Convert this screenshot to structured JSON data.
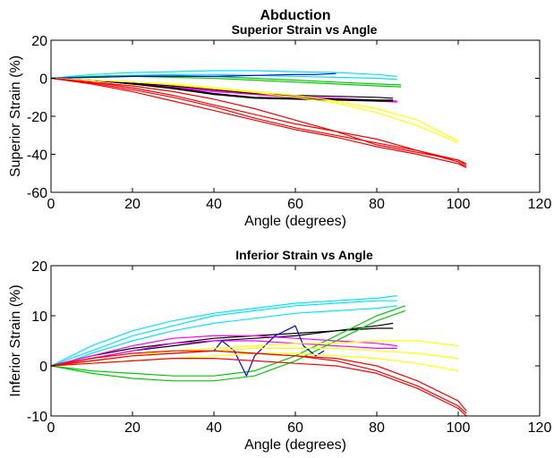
{
  "figure_title": "Abduction",
  "chart_data": [
    {
      "type": "line",
      "title": "Superior Strain vs Angle",
      "xlabel": "Angle (degrees)",
      "ylabel": "Superior Strain (%)",
      "xlim": [
        0,
        120
      ],
      "ylim": [
        -60,
        20
      ],
      "xticks": [
        0,
        20,
        40,
        60,
        80,
        100,
        120
      ],
      "yticks": [
        20,
        0,
        -20,
        -40,
        -60
      ],
      "grid": false,
      "series": [
        {
          "color": "#00e5ff",
          "x": [
            0,
            10,
            20,
            30,
            40,
            50,
            60,
            70,
            80,
            85
          ],
          "y": [
            0,
            2,
            3,
            3.5,
            4,
            4,
            3.5,
            3,
            2,
            1
          ]
        },
        {
          "color": "#00e5ff",
          "x": [
            0,
            10,
            20,
            30,
            40,
            50,
            60,
            70,
            80,
            85
          ],
          "y": [
            0,
            1,
            1.5,
            2,
            2,
            1.5,
            1,
            0.5,
            0,
            -0.5
          ]
        },
        {
          "color": "#00cc00",
          "x": [
            0,
            10,
            20,
            30,
            40,
            50,
            60,
            70,
            80,
            86
          ],
          "y": [
            0,
            0.5,
            1,
            0.5,
            0,
            -1,
            -2,
            -3,
            -4,
            -4.5
          ]
        },
        {
          "color": "#00cc00",
          "x": [
            0,
            10,
            20,
            30,
            40,
            50,
            60,
            70,
            80,
            86
          ],
          "y": [
            0,
            1,
            1.5,
            1.5,
            1,
            0,
            -1,
            -2,
            -3,
            -3.5
          ]
        },
        {
          "color": "#0000ff",
          "x": [
            0,
            10,
            20,
            30,
            40,
            50,
            60,
            65,
            70
          ],
          "y": [
            0,
            0.5,
            1,
            1,
            1,
            1.5,
            2,
            2,
            2.5
          ]
        },
        {
          "color": "#ff00ff",
          "x": [
            0,
            10,
            20,
            30,
            40,
            50,
            60,
            70,
            80,
            85
          ],
          "y": [
            0,
            -1,
            -3,
            -5,
            -7,
            -8.5,
            -10,
            -11,
            -12,
            -12.5
          ]
        },
        {
          "color": "#ff00ff",
          "x": [
            0,
            10,
            20,
            30,
            40,
            50,
            60,
            70,
            80,
            85
          ],
          "y": [
            0,
            -1,
            -2.5,
            -4.5,
            -6.5,
            -8,
            -9.5,
            -10.5,
            -11.5,
            -12
          ]
        },
        {
          "color": "#000000",
          "x": [
            0,
            10,
            20,
            30,
            40,
            50,
            60,
            70,
            80,
            84
          ],
          "y": [
            0,
            -1,
            -3,
            -5,
            -8,
            -10,
            -10.5,
            -11,
            -11.5,
            -11.5
          ]
        },
        {
          "color": "#000000",
          "x": [
            0,
            10,
            20,
            30,
            40,
            50,
            60,
            70,
            80,
            84
          ],
          "y": [
            0,
            -1,
            -3,
            -5.5,
            -8.5,
            -10.5,
            -11,
            -11.5,
            -12,
            -12
          ]
        },
        {
          "color": "#000000",
          "x": [
            0,
            10,
            20,
            30,
            40,
            50,
            60,
            70,
            80,
            84
          ],
          "y": [
            0,
            -1,
            -2.5,
            -4,
            -6,
            -8,
            -9,
            -9.5,
            -10,
            -10.5
          ]
        },
        {
          "color": "#ffff00",
          "x": [
            0,
            10,
            20,
            30,
            40,
            50,
            60,
            70,
            80,
            90,
            100
          ],
          "y": [
            0,
            -1,
            -2,
            -3,
            -5,
            -7,
            -9,
            -12,
            -16,
            -22,
            -33
          ]
        },
        {
          "color": "#ffff00",
          "x": [
            0,
            10,
            20,
            30,
            40,
            50,
            60,
            70,
            80,
            90,
            100
          ],
          "y": [
            0,
            -1,
            -2,
            -3.5,
            -5.5,
            -7.5,
            -10,
            -13,
            -18,
            -25,
            -34
          ]
        },
        {
          "color": "#ff0000",
          "x": [
            0,
            10,
            20,
            30,
            40,
            50,
            60,
            70,
            80,
            90,
            100,
            102
          ],
          "y": [
            0,
            -3,
            -7,
            -12,
            -17,
            -22,
            -27,
            -31,
            -36,
            -40,
            -45,
            -47
          ]
        },
        {
          "color": "#ff0000",
          "x": [
            0,
            10,
            20,
            30,
            40,
            50,
            60,
            70,
            80,
            90,
            100,
            102
          ],
          "y": [
            0,
            -2,
            -5,
            -9,
            -14,
            -19,
            -24,
            -28,
            -32,
            -38,
            -44,
            -47
          ]
        },
        {
          "color": "#ff0000",
          "x": [
            0,
            10,
            20,
            30,
            40,
            50,
            60,
            70,
            80,
            90,
            100,
            102
          ],
          "y": [
            0,
            -2,
            -4,
            -7,
            -11,
            -16,
            -22,
            -28,
            -35,
            -39,
            -43,
            -45
          ]
        },
        {
          "color": "#ff0000",
          "x": [
            0,
            10,
            20,
            30,
            40,
            50,
            60,
            70,
            80,
            90,
            100,
            102
          ],
          "y": [
            0,
            -2.5,
            -6,
            -10,
            -15,
            -21,
            -26,
            -30,
            -34,
            -38,
            -43,
            -46
          ]
        }
      ]
    },
    {
      "type": "line",
      "title": "Inferior Strain vs Angle",
      "xlabel": "Angle (degrees)",
      "ylabel": "Inferior Strain (%)",
      "xlim": [
        0,
        120
      ],
      "ylim": [
        -10,
        20
      ],
      "xticks": [
        0,
        20,
        40,
        60,
        80,
        100,
        120
      ],
      "yticks": [
        20,
        10,
        0,
        -10
      ],
      "grid": false,
      "series": [
        {
          "color": "#00e5ff",
          "x": [
            0,
            5,
            10,
            20,
            30,
            40,
            50,
            60,
            70,
            80,
            85
          ],
          "y": [
            0,
            2,
            4,
            7,
            9,
            10.5,
            11.5,
            12.5,
            13,
            13.5,
            14
          ]
        },
        {
          "color": "#00e5ff",
          "x": [
            0,
            5,
            10,
            20,
            30,
            40,
            50,
            60,
            70,
            80,
            85
          ],
          "y": [
            0,
            1.5,
            3,
            6,
            8,
            10,
            11,
            12,
            12.5,
            13,
            13
          ]
        },
        {
          "color": "#00e5ff",
          "x": [
            0,
            5,
            10,
            20,
            30,
            40,
            50,
            60,
            70,
            80,
            85
          ],
          "y": [
            0,
            1,
            2.5,
            5,
            7,
            8.5,
            9.5,
            10.5,
            11,
            11.5,
            12
          ]
        },
        {
          "color": "#000000",
          "x": [
            0,
            10,
            20,
            30,
            40,
            50,
            60,
            70,
            80,
            84
          ],
          "y": [
            0,
            2,
            3.5,
            4.5,
            5.5,
            6,
            6.5,
            7,
            7.5,
            7.5
          ]
        },
        {
          "color": "#000000",
          "x": [
            0,
            10,
            20,
            30,
            40,
            50,
            60,
            70,
            80,
            84
          ],
          "y": [
            0,
            1.5,
            3,
            4,
            5,
            5.5,
            6,
            7,
            8,
            8.5
          ]
        },
        {
          "color": "#ff00ff",
          "x": [
            0,
            10,
            20,
            30,
            40,
            50,
            60,
            70,
            80,
            85
          ],
          "y": [
            0,
            2,
            4,
            5.5,
            6,
            6,
            5.5,
            5,
            4.5,
            4
          ]
        },
        {
          "color": "#ff00ff",
          "x": [
            0,
            10,
            20,
            30,
            40,
            50,
            60,
            70,
            80,
            85
          ],
          "y": [
            0,
            1.5,
            3,
            4.5,
            5,
            5,
            4.5,
            4,
            3.5,
            3.5
          ]
        },
        {
          "color": "#00cc00",
          "x": [
            0,
            10,
            20,
            30,
            40,
            50,
            60,
            70,
            80,
            87
          ],
          "y": [
            0,
            -1,
            -1.5,
            -2,
            -2,
            -1,
            2,
            6,
            10,
            12
          ]
        },
        {
          "color": "#00cc00",
          "x": [
            0,
            10,
            20,
            30,
            40,
            50,
            60,
            70,
            80,
            87
          ],
          "y": [
            0,
            -1.5,
            -2.5,
            -3,
            -3,
            -2,
            1,
            5,
            9,
            11
          ]
        },
        {
          "color": "#0000ff",
          "x": [
            0,
            10,
            20,
            30,
            40,
            42,
            45,
            48,
            50,
            55,
            60,
            62,
            65,
            67
          ],
          "y": [
            0,
            1,
            2,
            2.5,
            3,
            5,
            3,
            -2,
            2,
            6,
            8,
            4,
            2,
            3
          ]
        },
        {
          "color": "#ffff00",
          "x": [
            0,
            10,
            20,
            30,
            40,
            50,
            60,
            70,
            80,
            90,
            100
          ],
          "y": [
            0,
            1,
            2,
            3,
            3.5,
            4,
            4.5,
            4.5,
            5,
            5,
            4
          ]
        },
        {
          "color": "#ffff00",
          "x": [
            0,
            10,
            20,
            30,
            40,
            50,
            60,
            70,
            80,
            90,
            100
          ],
          "y": [
            0,
            0.5,
            1,
            1.5,
            2,
            2.5,
            2.5,
            2,
            1.5,
            0.5,
            -1
          ]
        },
        {
          "color": "#ffff00",
          "x": [
            0,
            10,
            20,
            30,
            40,
            50,
            60,
            70,
            80,
            90,
            100
          ],
          "y": [
            0,
            1,
            2,
            2.5,
            3,
            3.5,
            3.5,
            3.5,
            3,
            2.5,
            1.5
          ]
        },
        {
          "color": "#ff0000",
          "x": [
            0,
            10,
            20,
            30,
            40,
            50,
            60,
            70,
            80,
            90,
            100,
            102
          ],
          "y": [
            0,
            1,
            2,
            2.5,
            3,
            2.5,
            2,
            1,
            -1,
            -4,
            -8,
            -9.5
          ]
        },
        {
          "color": "#ff0000",
          "x": [
            0,
            10,
            20,
            30,
            40,
            50,
            60,
            70,
            80,
            90,
            100,
            102
          ],
          "y": [
            0,
            1.5,
            2.5,
            3,
            3,
            2.5,
            2,
            1.5,
            0,
            -3,
            -7,
            -9
          ]
        },
        {
          "color": "#ff0000",
          "x": [
            0,
            10,
            20,
            30,
            40,
            50,
            60,
            70,
            80,
            90,
            100,
            102
          ],
          "y": [
            0,
            0.5,
            1,
            1.5,
            1.5,
            1,
            0.5,
            0,
            -1.5,
            -4.5,
            -8.5,
            -10
          ]
        }
      ]
    }
  ]
}
